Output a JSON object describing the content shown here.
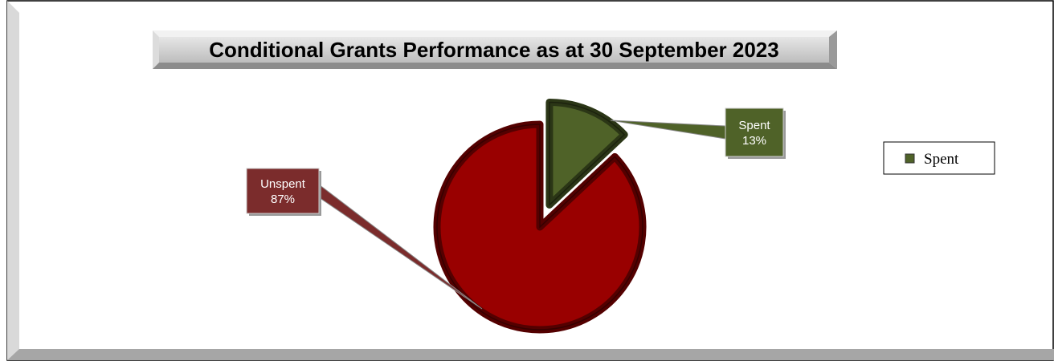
{
  "chart_data": {
    "type": "pie",
    "title": "Conditional Grants Performance as at 30 September 2023",
    "categories": [
      "Spent",
      "Unspent"
    ],
    "values": [
      13,
      87
    ],
    "value_labels": [
      "13%",
      "87%"
    ],
    "colors": [
      "#4f6228",
      "#990000"
    ],
    "legend": "right"
  }
}
